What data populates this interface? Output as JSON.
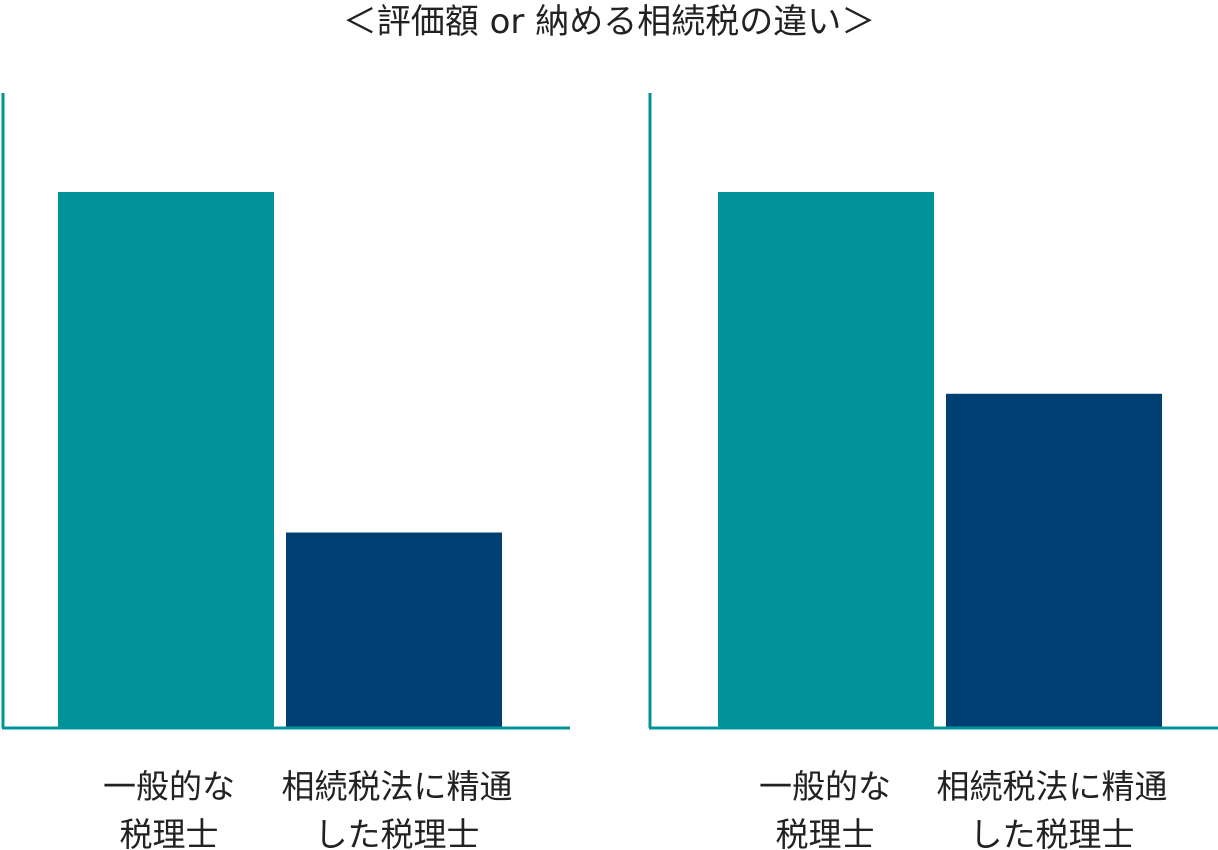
{
  "title": "＜評価額 or 納める相続税の違い＞",
  "colors": {
    "axis": "#00939A",
    "general": "#00939A",
    "expert": "#003F72"
  },
  "chart_data": [
    {
      "type": "bar",
      "title": "",
      "xlabel": "",
      "ylabel": "",
      "ylim": [
        0,
        100
      ],
      "grid": false,
      "categories": [
        [
          "一般的な",
          "税理士"
        ],
        [
          "相続税法に精通",
          "した税理士"
        ]
      ],
      "values": [
        85,
        31
      ]
    },
    {
      "type": "bar",
      "title": "",
      "xlabel": "",
      "ylabel": "",
      "ylim": [
        0,
        100
      ],
      "grid": false,
      "categories": [
        [
          "一般的な",
          "税理士"
        ],
        [
          "相続税法に精通",
          "した税理士"
        ]
      ],
      "values": [
        85,
        53
      ]
    }
  ]
}
